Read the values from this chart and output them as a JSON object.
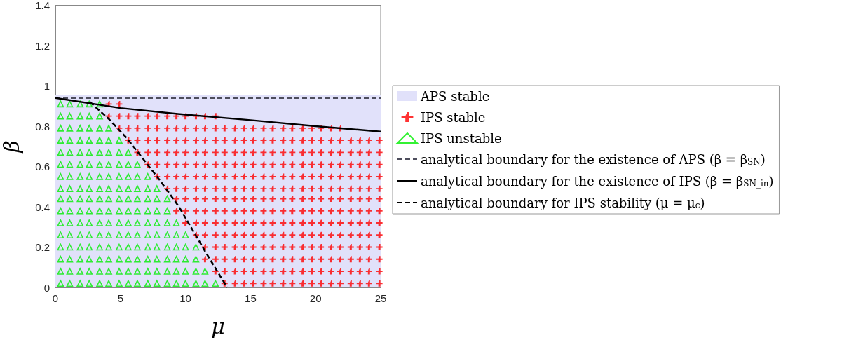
{
  "chart_data": {
    "type": "scatter",
    "xlabel": "μ",
    "ylabel": "β",
    "xlim": [
      0,
      25
    ],
    "xticks": [
      0,
      5,
      10,
      15,
      20,
      25
    ],
    "ylim": [
      0,
      1.4
    ],
    "yticks": [
      0,
      0.2,
      0.4,
      0.6,
      0.8,
      1,
      1.2,
      1.4
    ],
    "grid": false,
    "legend": "right",
    "series": [
      {
        "name": "APS stable",
        "type": "area",
        "color": "#e1e1fa",
        "marker": "none",
        "x": [
          0,
          25
        ],
        "values": [
          0.955,
          0.955
        ]
      },
      {
        "name": "IPS stable",
        "color": "#ff0000",
        "marker": "cross",
        "x": [
          13.0,
          13.8,
          14.5,
          15.2,
          16.0,
          16.7,
          17.5,
          18.2,
          19.0,
          19.7,
          20.4,
          21.2,
          21.9,
          22.7,
          23.4,
          24.1,
          24.9,
          12.3,
          13.0,
          13.8,
          14.5,
          15.2,
          16.0,
          16.7,
          17.5,
          18.2,
          19.0,
          19.7,
          20.4,
          21.2,
          21.9,
          22.7,
          23.4,
          24.1,
          24.9,
          11.5,
          12.3,
          13.0,
          13.8,
          14.5,
          15.2,
          16.0,
          16.7,
          17.5,
          18.2,
          19.0,
          19.7,
          20.4,
          21.2,
          21.9,
          22.7,
          23.4,
          24.1,
          24.9,
          11.5,
          12.3,
          13.0,
          13.8,
          14.5,
          15.2,
          16.0,
          16.7,
          17.5,
          18.2,
          19.0,
          19.7,
          20.4,
          21.2,
          21.9,
          22.7,
          23.4,
          24.1,
          24.9,
          10.8,
          11.5,
          12.3,
          13.0,
          13.8,
          14.5,
          15.2,
          16.0,
          16.7,
          17.5,
          18.2,
          19.0,
          19.7,
          20.4,
          21.2,
          21.9,
          22.7,
          23.4,
          24.1,
          24.9,
          10.0,
          10.8,
          11.5,
          12.3,
          13.0,
          13.8,
          14.5,
          15.2,
          16.0,
          16.7,
          17.5,
          18.2,
          19.0,
          19.7,
          20.4,
          21.2,
          21.9,
          22.7,
          23.4,
          24.1,
          24.9,
          9.3,
          10.0,
          10.8,
          11.5,
          12.3,
          13.0,
          13.8,
          14.5,
          15.2,
          16.0,
          16.7,
          17.5,
          18.2,
          19.0,
          19.7,
          20.4,
          21.2,
          21.9,
          22.7,
          23.4,
          24.1,
          24.9,
          9.3,
          10.0,
          10.8,
          11.5,
          12.3,
          13.0,
          13.8,
          14.5,
          15.2,
          16.0,
          16.7,
          17.5,
          18.2,
          19.0,
          19.7,
          20.4,
          21.2,
          21.9,
          22.7,
          23.4,
          24.1,
          24.9,
          8.6,
          9.3,
          10.0,
          10.8,
          11.5,
          12.3,
          13.0,
          13.8,
          14.5,
          15.2,
          16.0,
          16.7,
          17.5,
          18.2,
          19.0,
          19.7,
          20.4,
          21.2,
          21.9,
          22.7,
          23.4,
          24.1,
          24.9,
          7.8,
          8.6,
          9.3,
          10.0,
          10.8,
          11.5,
          12.3,
          13.0,
          13.8,
          14.5,
          15.2,
          16.0,
          16.7,
          17.5,
          18.2,
          19.0,
          19.7,
          20.4,
          21.2,
          21.9,
          22.7,
          23.4,
          24.1,
          24.9,
          7.1,
          7.8,
          8.6,
          9.3,
          10.0,
          10.8,
          11.5,
          12.3,
          13.0,
          13.8,
          14.5,
          15.2,
          16.0,
          16.7,
          17.5,
          18.2,
          19.0,
          19.7,
          20.4,
          21.2,
          21.9,
          22.7,
          23.4,
          24.1,
          24.9,
          6.3,
          7.1,
          7.8,
          8.6,
          9.3,
          10.0,
          10.8,
          11.5,
          12.3,
          13.0,
          13.8,
          14.5,
          15.2,
          16.0,
          16.7,
          17.5,
          18.2,
          19.0,
          19.7,
          20.4,
          21.2,
          21.9,
          22.7,
          23.4,
          24.1,
          24.9,
          5.6,
          6.3,
          7.1,
          7.8,
          8.6,
          9.3,
          10.0,
          10.8,
          11.5,
          12.3,
          13.0,
          13.8,
          14.5,
          15.2,
          16.0,
          16.7,
          17.5,
          18.2,
          19.0,
          19.7,
          20.4,
          21.2,
          21.9,
          22.7,
          23.4,
          24.1,
          24.9,
          4.9,
          5.6,
          6.3,
          7.1,
          7.8,
          8.6,
          9.3,
          10.0,
          10.8,
          11.5,
          12.3,
          13.0,
          13.8,
          14.5,
          15.2,
          16.0,
          16.7,
          17.5,
          18.2,
          19.0,
          19.7,
          20.4,
          21.2,
          21.9,
          4.1,
          4.9,
          5.6,
          6.3,
          7.1,
          7.8,
          8.6,
          9.3,
          10.0,
          10.8,
          11.5,
          12.3,
          4.1,
          4.9
        ],
        "values": [
          0.02,
          0.02,
          0.02,
          0.02,
          0.02,
          0.02,
          0.02,
          0.02,
          0.02,
          0.02,
          0.02,
          0.02,
          0.02,
          0.02,
          0.02,
          0.02,
          0.02,
          0.08,
          0.08,
          0.08,
          0.08,
          0.08,
          0.08,
          0.08,
          0.08,
          0.08,
          0.08,
          0.08,
          0.08,
          0.08,
          0.08,
          0.08,
          0.08,
          0.08,
          0.08,
          0.14,
          0.14,
          0.14,
          0.14,
          0.14,
          0.14,
          0.14,
          0.14,
          0.14,
          0.14,
          0.14,
          0.14,
          0.14,
          0.14,
          0.14,
          0.14,
          0.14,
          0.14,
          0.14,
          0.2,
          0.2,
          0.2,
          0.2,
          0.2,
          0.2,
          0.2,
          0.2,
          0.2,
          0.2,
          0.2,
          0.2,
          0.2,
          0.2,
          0.2,
          0.2,
          0.2,
          0.2,
          0.2,
          0.26,
          0.26,
          0.26,
          0.26,
          0.26,
          0.26,
          0.26,
          0.26,
          0.26,
          0.26,
          0.26,
          0.26,
          0.26,
          0.26,
          0.26,
          0.26,
          0.26,
          0.26,
          0.26,
          0.26,
          0.32,
          0.32,
          0.32,
          0.32,
          0.32,
          0.32,
          0.32,
          0.32,
          0.32,
          0.32,
          0.32,
          0.32,
          0.32,
          0.32,
          0.32,
          0.32,
          0.32,
          0.32,
          0.32,
          0.32,
          0.32,
          0.38,
          0.38,
          0.38,
          0.38,
          0.38,
          0.38,
          0.38,
          0.38,
          0.38,
          0.38,
          0.38,
          0.38,
          0.38,
          0.38,
          0.38,
          0.38,
          0.38,
          0.38,
          0.38,
          0.38,
          0.38,
          0.38,
          0.44,
          0.44,
          0.44,
          0.44,
          0.44,
          0.44,
          0.44,
          0.44,
          0.44,
          0.44,
          0.44,
          0.44,
          0.44,
          0.44,
          0.44,
          0.44,
          0.44,
          0.44,
          0.44,
          0.44,
          0.44,
          0.44,
          0.49,
          0.49,
          0.49,
          0.49,
          0.49,
          0.49,
          0.49,
          0.49,
          0.49,
          0.49,
          0.49,
          0.49,
          0.49,
          0.49,
          0.49,
          0.49,
          0.49,
          0.49,
          0.49,
          0.49,
          0.49,
          0.49,
          0.49,
          0.55,
          0.55,
          0.55,
          0.55,
          0.55,
          0.55,
          0.55,
          0.55,
          0.55,
          0.55,
          0.55,
          0.55,
          0.55,
          0.55,
          0.55,
          0.55,
          0.55,
          0.55,
          0.55,
          0.55,
          0.55,
          0.55,
          0.55,
          0.55,
          0.61,
          0.61,
          0.61,
          0.61,
          0.61,
          0.61,
          0.61,
          0.61,
          0.61,
          0.61,
          0.61,
          0.61,
          0.61,
          0.61,
          0.61,
          0.61,
          0.61,
          0.61,
          0.61,
          0.61,
          0.61,
          0.61,
          0.61,
          0.61,
          0.61,
          0.67,
          0.67,
          0.67,
          0.67,
          0.67,
          0.67,
          0.67,
          0.67,
          0.67,
          0.67,
          0.67,
          0.67,
          0.67,
          0.67,
          0.67,
          0.67,
          0.67,
          0.67,
          0.67,
          0.67,
          0.67,
          0.67,
          0.67,
          0.67,
          0.67,
          0.67,
          0.73,
          0.73,
          0.73,
          0.73,
          0.73,
          0.73,
          0.73,
          0.73,
          0.73,
          0.73,
          0.73,
          0.73,
          0.73,
          0.73,
          0.73,
          0.73,
          0.73,
          0.73,
          0.73,
          0.73,
          0.73,
          0.73,
          0.73,
          0.73,
          0.73,
          0.73,
          0.73,
          0.79,
          0.79,
          0.79,
          0.79,
          0.79,
          0.79,
          0.79,
          0.79,
          0.79,
          0.79,
          0.79,
          0.79,
          0.79,
          0.79,
          0.79,
          0.79,
          0.79,
          0.79,
          0.79,
          0.79,
          0.79,
          0.79,
          0.79,
          0.79,
          0.85,
          0.85,
          0.85,
          0.85,
          0.85,
          0.85,
          0.85,
          0.85,
          0.85,
          0.85,
          0.85,
          0.85,
          0.91,
          0.91
        ]
      },
      {
        "name": "IPS unstable",
        "color": "#00ee00",
        "marker": "triangle",
        "x": [
          0.4,
          1.1,
          1.9,
          2.6,
          3.4,
          4.1,
          4.9,
          5.6,
          6.3,
          7.1,
          7.8,
          8.6,
          9.3,
          10.0,
          10.8,
          11.5,
          12.3,
          0.4,
          1.1,
          1.9,
          2.6,
          3.4,
          4.1,
          4.9,
          5.6,
          6.3,
          7.1,
          7.8,
          8.6,
          9.3,
          10.0,
          10.8,
          11.5,
          0.4,
          1.1,
          1.9,
          2.6,
          3.4,
          4.1,
          4.9,
          5.6,
          6.3,
          7.1,
          7.8,
          8.6,
          9.3,
          10.0,
          10.8,
          0.4,
          1.1,
          1.9,
          2.6,
          3.4,
          4.1,
          4.9,
          5.6,
          6.3,
          7.1,
          7.8,
          8.6,
          9.3,
          10.0,
          10.8,
          0.4,
          1.1,
          1.9,
          2.6,
          3.4,
          4.1,
          4.9,
          5.6,
          6.3,
          7.1,
          7.8,
          8.6,
          9.3,
          10.0,
          0.4,
          1.1,
          1.9,
          2.6,
          3.4,
          4.1,
          4.9,
          5.6,
          6.3,
          7.1,
          7.8,
          8.6,
          9.3,
          0.4,
          1.1,
          1.9,
          2.6,
          3.4,
          4.1,
          4.9,
          5.6,
          6.3,
          7.1,
          7.8,
          8.6,
          0.4,
          1.1,
          1.9,
          2.6,
          3.4,
          4.1,
          4.9,
          5.6,
          6.3,
          7.1,
          7.8,
          8.6,
          0.4,
          1.1,
          1.9,
          2.6,
          3.4,
          4.1,
          4.9,
          5.6,
          6.3,
          7.1,
          7.8,
          0.4,
          1.1,
          1.9,
          2.6,
          3.4,
          4.1,
          4.9,
          5.6,
          6.3,
          7.1,
          0.4,
          1.1,
          1.9,
          2.6,
          3.4,
          4.1,
          4.9,
          5.6,
          6.3,
          0.4,
          1.1,
          1.9,
          2.6,
          3.4,
          4.1,
          4.9,
          5.6,
          0.4,
          1.1,
          1.9,
          2.6,
          3.4,
          4.1,
          4.9,
          0.4,
          1.1,
          1.9,
          2.6,
          3.4,
          4.1,
          0.4,
          1.1,
          1.9,
          2.6,
          3.4,
          0.4,
          1.1,
          1.9,
          2.6,
          3.4
        ],
        "values": [
          0.02,
          0.02,
          0.02,
          0.02,
          0.02,
          0.02,
          0.02,
          0.02,
          0.02,
          0.02,
          0.02,
          0.02,
          0.02,
          0.02,
          0.02,
          0.02,
          0.02,
          0.08,
          0.08,
          0.08,
          0.08,
          0.08,
          0.08,
          0.08,
          0.08,
          0.08,
          0.08,
          0.08,
          0.08,
          0.08,
          0.08,
          0.08,
          0.08,
          0.14,
          0.14,
          0.14,
          0.14,
          0.14,
          0.14,
          0.14,
          0.14,
          0.14,
          0.14,
          0.14,
          0.14,
          0.14,
          0.14,
          0.14,
          0.2,
          0.2,
          0.2,
          0.2,
          0.2,
          0.2,
          0.2,
          0.2,
          0.2,
          0.2,
          0.2,
          0.2,
          0.2,
          0.2,
          0.2,
          0.26,
          0.26,
          0.26,
          0.26,
          0.26,
          0.26,
          0.26,
          0.26,
          0.26,
          0.26,
          0.26,
          0.26,
          0.26,
          0.26,
          0.32,
          0.32,
          0.32,
          0.32,
          0.32,
          0.32,
          0.32,
          0.32,
          0.32,
          0.32,
          0.32,
          0.32,
          0.32,
          0.38,
          0.38,
          0.38,
          0.38,
          0.38,
          0.38,
          0.38,
          0.38,
          0.38,
          0.38,
          0.38,
          0.38,
          0.44,
          0.44,
          0.44,
          0.44,
          0.44,
          0.44,
          0.44,
          0.44,
          0.44,
          0.44,
          0.44,
          0.44,
          0.49,
          0.49,
          0.49,
          0.49,
          0.49,
          0.49,
          0.49,
          0.49,
          0.49,
          0.49,
          0.49,
          0.55,
          0.55,
          0.55,
          0.55,
          0.55,
          0.55,
          0.55,
          0.55,
          0.55,
          0.55,
          0.61,
          0.61,
          0.61,
          0.61,
          0.61,
          0.61,
          0.61,
          0.61,
          0.61,
          0.67,
          0.67,
          0.67,
          0.67,
          0.67,
          0.67,
          0.67,
          0.67,
          0.73,
          0.73,
          0.73,
          0.73,
          0.73,
          0.73,
          0.73,
          0.79,
          0.79,
          0.79,
          0.79,
          0.79,
          0.79,
          0.85,
          0.85,
          0.85,
          0.85,
          0.85,
          0.91,
          0.91,
          0.91,
          0.91,
          0.91
        ]
      },
      {
        "name": "analytical boundary for the existence of APS (β = β$_{SN}$)",
        "type": "line",
        "color": "#4d4d5c",
        "marker": "none",
        "line_style": "dashed",
        "x": [
          0,
          25
        ],
        "values": [
          0.94,
          0.94
        ]
      },
      {
        "name": "analytical boundary for the existence of IPS (β = β$_{SN_in}$)",
        "type": "line",
        "color": "#000000",
        "marker": "none",
        "line_style": "solid",
        "x": [
          0,
          5,
          10,
          15,
          20,
          25
        ],
        "values": [
          0.94,
          0.89,
          0.857,
          0.83,
          0.8,
          0.773
        ]
      },
      {
        "name": "analytical boundary for IPS stability (μ = μ$_{c}$)",
        "type": "line",
        "color": "#000000",
        "marker": "none",
        "line_style": "dashed",
        "x": [
          2.65,
          4.1,
          5.5,
          8.05,
          9.5,
          11.5,
          13.2
        ],
        "values": [
          0.92,
          0.836,
          0.74,
          0.53,
          0.4,
          0.18,
          0
        ]
      }
    ]
  }
}
